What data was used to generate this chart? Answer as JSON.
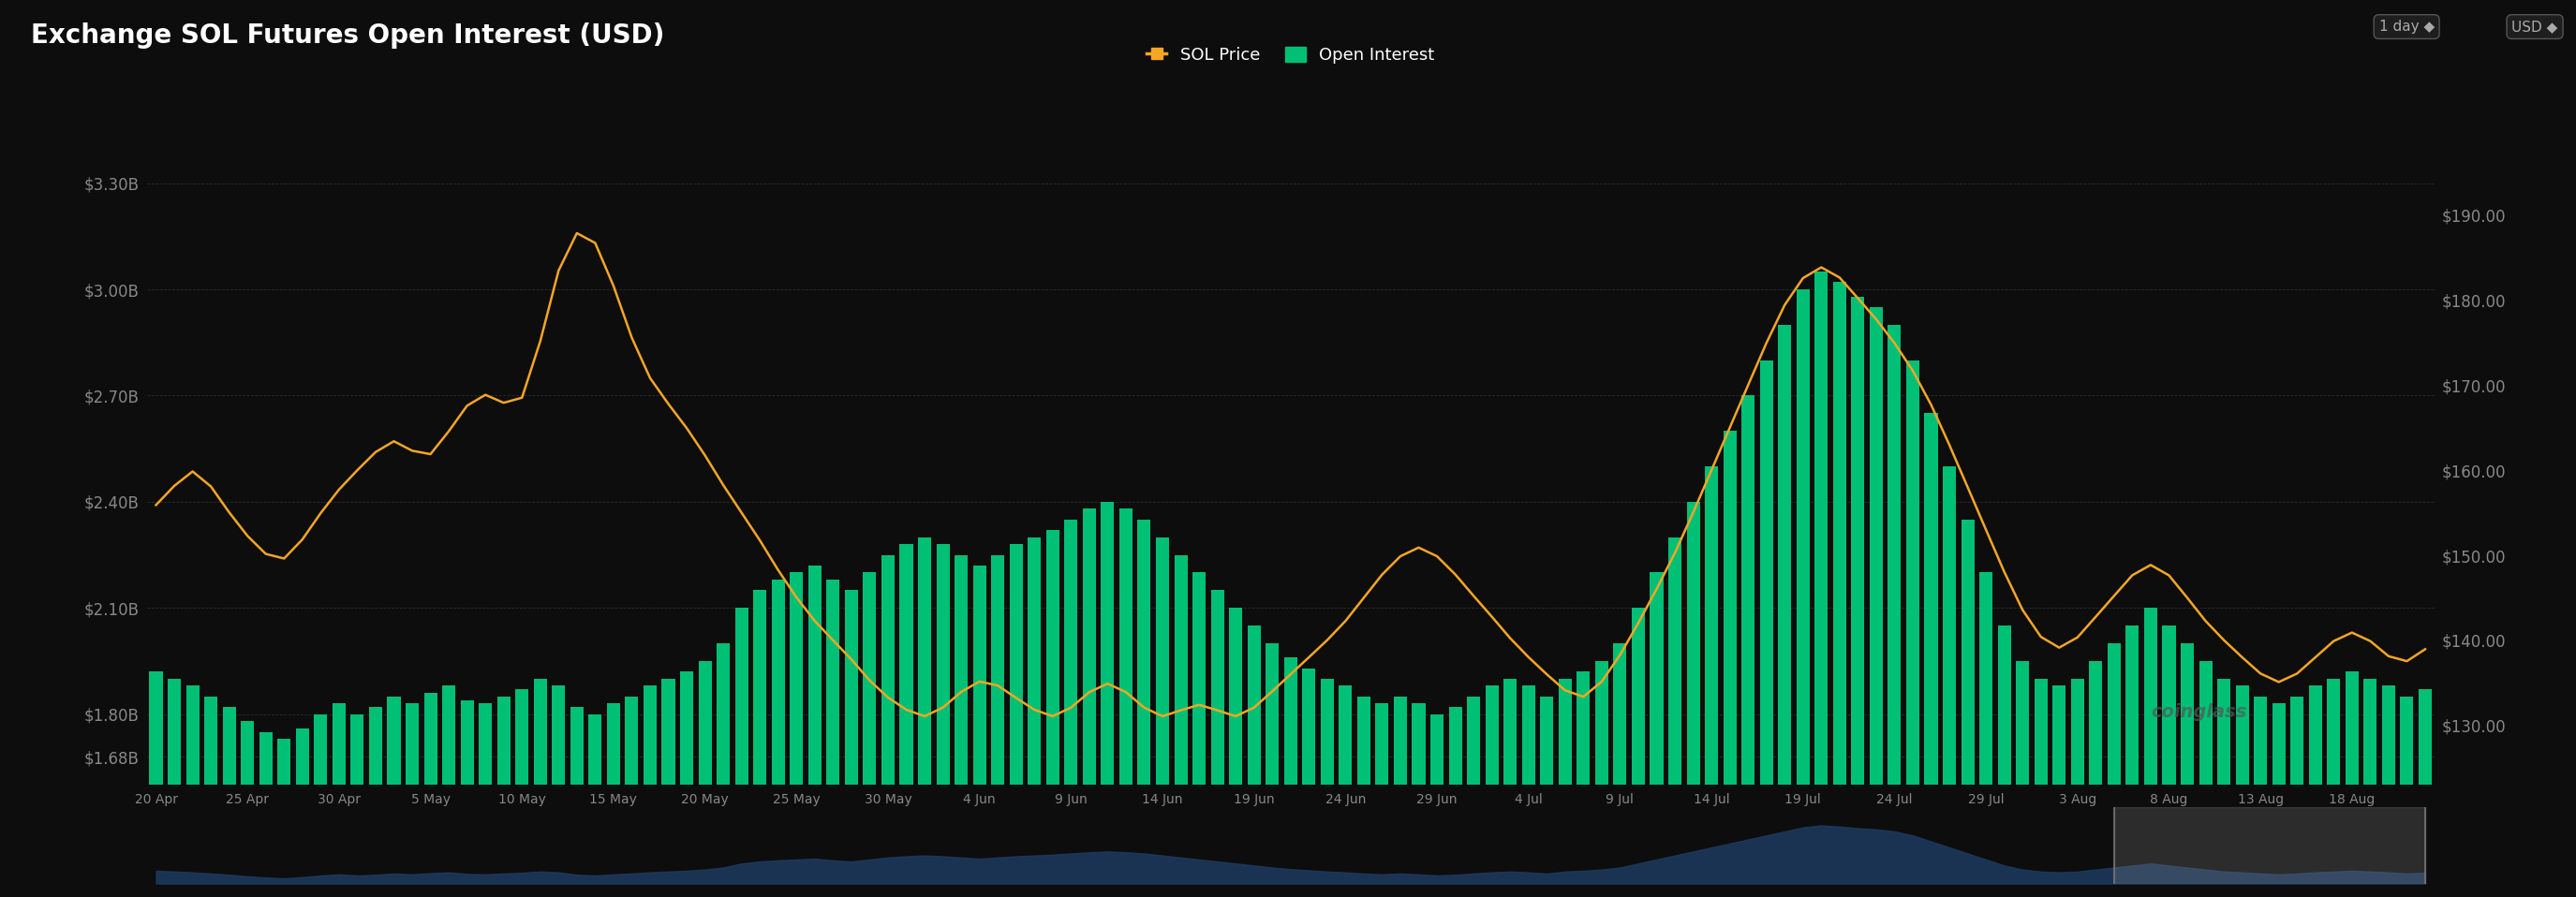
{
  "title": "Exchange SOL Futures Open Interest (USD)",
  "background_color": "#0d0d0d",
  "bar_color": "#00c076",
  "line_color": "#f5a623",
  "legend_sol_label": "SOL Price",
  "legend_oi_label": "Open Interest",
  "left_yticks_labels": [
    "$1.68B",
    "$1.80B",
    "$2.10B",
    "$2.40B",
    "$2.70B",
    "$3.00B",
    "$3.30B"
  ],
  "left_yticks_vals": [
    1.68,
    1.8,
    2.1,
    2.4,
    2.7,
    3.0,
    3.3
  ],
  "right_yticks_labels": [
    "$130.00",
    "$140.00",
    "$150.00",
    "$160.00",
    "$170.00",
    "$180.00",
    "$190.00"
  ],
  "right_yticks_vals": [
    130,
    140,
    150,
    160,
    170,
    180,
    190
  ],
  "ylim_left": [
    1.6,
    3.45
  ],
  "ylim_right": [
    123,
    200
  ],
  "x_tick_labels": [
    "20 Apr",
    "25 Apr",
    "30 Apr",
    "5 May",
    "10 May",
    "15 May",
    "20 May",
    "25 May",
    "30 May",
    "4 Jun",
    "9 Jun",
    "14 Jun",
    "19 Jun",
    "24 Jun",
    "29 Jun",
    "4 Jul",
    "9 Jul",
    "14 Jul",
    "19 Jul",
    "24 Jul",
    "29 Jul",
    "3 Aug",
    "8 Aug",
    "13 Aug",
    "18 Aug"
  ],
  "open_interest_b": [
    1.92,
    1.9,
    1.88,
    1.85,
    1.82,
    1.78,
    1.75,
    1.73,
    1.76,
    1.8,
    1.83,
    1.8,
    1.82,
    1.85,
    1.83,
    1.86,
    1.88,
    1.84,
    1.83,
    1.85,
    1.87,
    1.9,
    1.88,
    1.82,
    1.8,
    1.83,
    1.85,
    1.88,
    1.9,
    1.92,
    1.95,
    2.0,
    2.1,
    2.15,
    2.18,
    2.2,
    2.22,
    2.18,
    2.15,
    2.2,
    2.25,
    2.28,
    2.3,
    2.28,
    2.25,
    2.22,
    2.25,
    2.28,
    2.3,
    2.32,
    2.35,
    2.38,
    2.4,
    2.38,
    2.35,
    2.3,
    2.25,
    2.2,
    2.15,
    2.1,
    2.05,
    2.0,
    1.96,
    1.93,
    1.9,
    1.88,
    1.85,
    1.83,
    1.85,
    1.83,
    1.8,
    1.82,
    1.85,
    1.88,
    1.9,
    1.88,
    1.85,
    1.9,
    1.92,
    1.95,
    2.0,
    2.1,
    2.2,
    2.3,
    2.4,
    2.5,
    2.6,
    2.7,
    2.8,
    2.9,
    3.0,
    3.05,
    3.02,
    2.98,
    2.95,
    2.9,
    2.8,
    2.65,
    2.5,
    2.35,
    2.2,
    2.05,
    1.95,
    1.9,
    1.88,
    1.9,
    1.95,
    2.0,
    2.05,
    2.1,
    2.05,
    2.0,
    1.95,
    1.9,
    1.88,
    1.85,
    1.83,
    1.85,
    1.88,
    1.9,
    1.92,
    1.9,
    1.88,
    1.85,
    1.87
  ],
  "sol_price": [
    155,
    158,
    162,
    158,
    155,
    152,
    150,
    148,
    152,
    155,
    158,
    160,
    162,
    165,
    162,
    160,
    165,
    168,
    170,
    168,
    165,
    175,
    185,
    190,
    188,
    182,
    175,
    170,
    168,
    165,
    162,
    158,
    155,
    152,
    148,
    145,
    142,
    140,
    138,
    135,
    133,
    132,
    130,
    132,
    134,
    136,
    135,
    133,
    132,
    130,
    132,
    134,
    136,
    134,
    132,
    130,
    132,
    133,
    132,
    130,
    132,
    134,
    136,
    138,
    140,
    142,
    145,
    148,
    150,
    152,
    150,
    148,
    145,
    143,
    140,
    138,
    136,
    134,
    132,
    135,
    138,
    142,
    146,
    150,
    155,
    160,
    165,
    170,
    175,
    180,
    183,
    185,
    183,
    180,
    178,
    175,
    172,
    168,
    163,
    158,
    153,
    148,
    143,
    140,
    138,
    140,
    143,
    145,
    148,
    150,
    148,
    145,
    142,
    140,
    138,
    136,
    134,
    136,
    138,
    140,
    142,
    140,
    138,
    136,
    140
  ]
}
